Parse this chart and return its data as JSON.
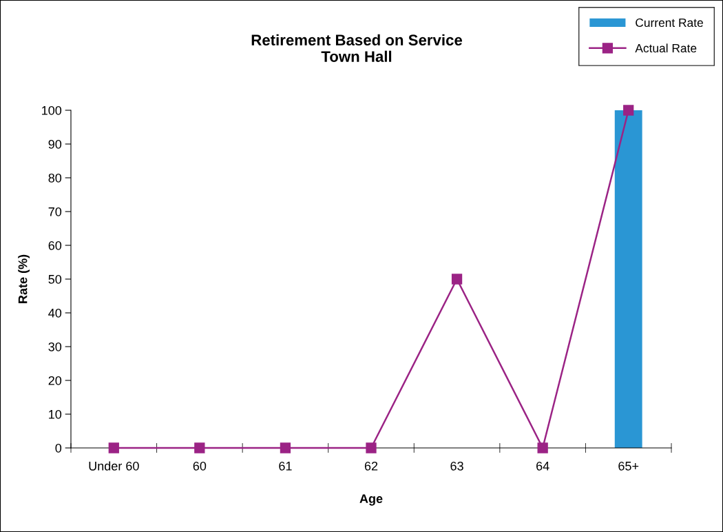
{
  "chart_data": {
    "type": "bar",
    "title": "Retirement Based on Service\nTown Hall",
    "xlabel": "Age",
    "ylabel": "Rate (%)",
    "categories": [
      "Under 60",
      "60",
      "61",
      "62",
      "63",
      "64",
      "65+"
    ],
    "series": [
      {
        "name": "Current Rate",
        "color": "#2a96d4",
        "values": [
          0,
          0,
          0,
          0,
          0,
          0,
          100
        ]
      },
      {
        "name": "Actual Rate",
        "type": "line",
        "color": "#9b2385",
        "marker": "square",
        "values": [
          0,
          0,
          0,
          0,
          50,
          0,
          100
        ]
      }
    ],
    "ylim": [
      0,
      100
    ],
    "yticks": [
      0,
      10,
      20,
      30,
      40,
      50,
      60,
      70,
      80,
      90,
      100
    ],
    "grid": false,
    "legend": "top right"
  }
}
